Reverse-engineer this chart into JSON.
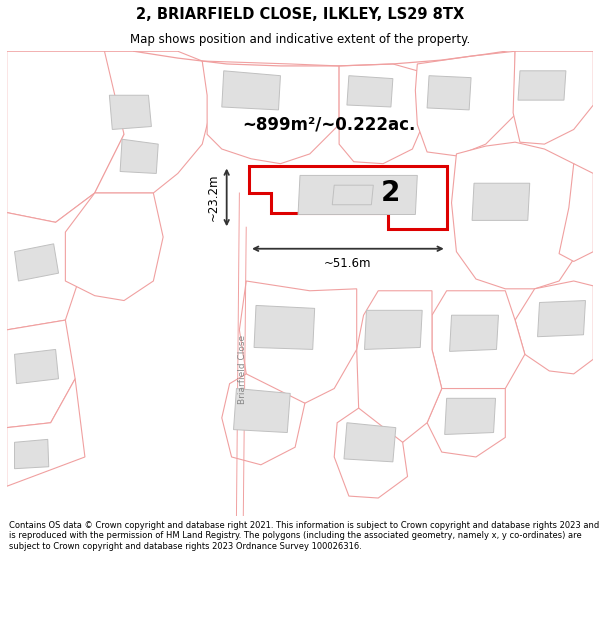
{
  "title_line1": "2, BRIARFIELD CLOSE, ILKLEY, LS29 8TX",
  "title_line2": "Map shows position and indicative extent of the property.",
  "footer_text": "Contains OS data © Crown copyright and database right 2021. This information is subject to Crown copyright and database rights 2023 and is reproduced with the permission of HM Land Registry. The polygons (including the associated geometry, namely x, y co-ordinates) are subject to Crown copyright and database rights 2023 Ordnance Survey 100026316.",
  "area_label": "~899m²/~0.222ac.",
  "plot_number": "2",
  "dim_width": "~51.6m",
  "dim_height": "~23.2m",
  "road_label": "Briarfield Close",
  "map_bg": "#ffffff",
  "highlight_fill": "#ffffff",
  "highlight_edge": "#dd0000",
  "road_lines_color": "#f0a0a0",
  "building_fill": "#e0e0e0",
  "building_edge": "#c0c0c0",
  "title_bg": "#ffffff",
  "footer_bg": "#ffffff",
  "dim_color": "#333333"
}
